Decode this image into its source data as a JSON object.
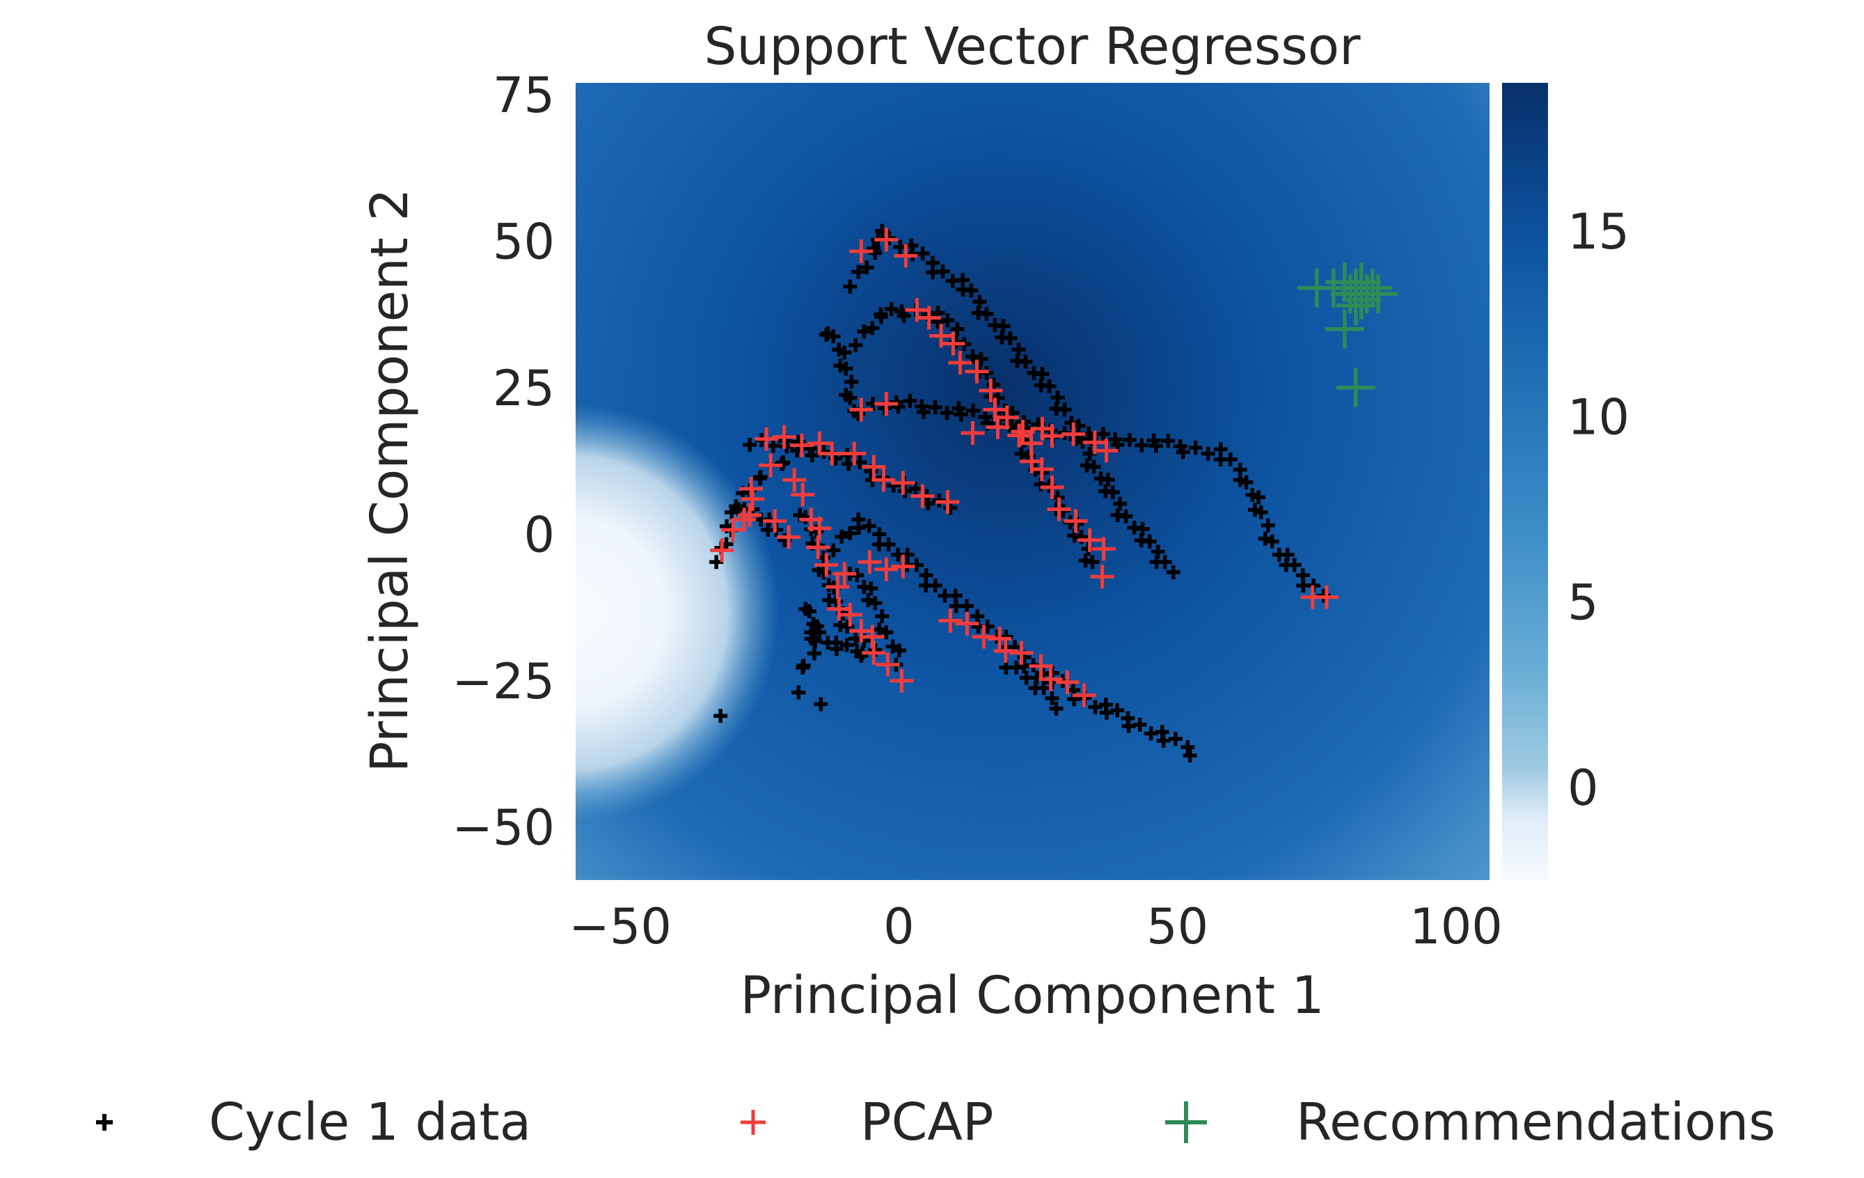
{
  "chart_data": {
    "type": "scatter",
    "title": "Support Vector Regressor",
    "xlabel": "Principal Component 1",
    "ylabel": "Principal Component 2",
    "xlim": [
      -58,
      106
    ],
    "ylim": [
      -59,
      77
    ],
    "xticks": [
      -50,
      0,
      50,
      100
    ],
    "yticks": [
      -50,
      -25,
      0,
      25,
      50,
      75
    ],
    "grid": false,
    "background": {
      "type": "heatmap",
      "colormap": "Blues",
      "colorbar": {
        "range": [
          -2.5,
          19
        ],
        "ticks": [
          0,
          5,
          10,
          15
        ]
      },
      "peaks": [
        {
          "x": 20,
          "y": 22,
          "value": 19
        },
        {
          "x": -58,
          "y": -9,
          "value": -2.5
        }
      ]
    },
    "colors": {
      "cycle1": "#000000",
      "pcap": "#f23c3c",
      "recommendations": "#2e8b57"
    },
    "legend": {
      "placement": "bottom",
      "entries": [
        "Cycle 1 data",
        "PCAP",
        "Recommendations"
      ]
    },
    "series": [
      {
        "name": "Cycle 1 data",
        "marker": "plus-small",
        "paths": [
          [
            [
              -3,
              51
            ],
            [
              3,
              48
            ],
            [
              12,
              42
            ],
            [
              18,
              35
            ],
            [
              24,
              28
            ],
            [
              30,
              21
            ],
            [
              33,
              15
            ],
            [
              36,
              10
            ],
            [
              40,
              4
            ],
            [
              45,
              -2
            ],
            [
              49,
              -6
            ]
          ],
          [
            [
              -8,
              43
            ],
            [
              -6,
              46
            ],
            [
              -4,
              49
            ],
            [
              -3,
              51
            ]
          ],
          [
            [
              -12,
              35
            ],
            [
              -9,
              26
            ],
            [
              -8,
              20
            ]
          ],
          [
            [
              -7,
              33
            ],
            [
              -4,
              37
            ],
            [
              0,
              38
            ],
            [
              5,
              38
            ],
            [
              10,
              35
            ],
            [
              15,
              28
            ],
            [
              18,
              23
            ],
            [
              22,
              16
            ],
            [
              25,
              10
            ],
            [
              29,
              5
            ],
            [
              32,
              0
            ],
            [
              35,
              -5
            ]
          ],
          [
            [
              -6,
              22
            ],
            [
              2,
              22
            ],
            [
              10,
              21
            ],
            [
              20,
              19
            ],
            [
              30,
              17
            ],
            [
              40,
              16
            ],
            [
              50,
              15
            ],
            [
              57,
              14
            ],
            [
              62,
              10
            ],
            [
              65,
              3
            ],
            [
              68,
              -3
            ],
            [
              72,
              -7
            ],
            [
              76,
              -10
            ]
          ],
          [
            [
              -26,
              16
            ],
            [
              -18,
              15
            ],
            [
              -10,
              13
            ],
            [
              -4,
              10
            ],
            [
              3,
              7
            ],
            [
              9,
              5
            ]
          ],
          [
            [
              -32,
              -4
            ],
            [
              -30,
              3
            ],
            [
              -27,
              8
            ],
            [
              -23,
              11
            ],
            [
              -20,
              13
            ],
            [
              -18,
              14
            ]
          ],
          [
            [
              -27,
              5
            ],
            [
              -24,
              2
            ],
            [
              -21,
              -1
            ]
          ],
          [
            [
              -17,
              4
            ],
            [
              -14,
              -4
            ],
            [
              -12,
              -11
            ],
            [
              -9,
              -16
            ],
            [
              -6,
              -20
            ]
          ],
          [
            [
              -11,
              -2
            ],
            [
              -8,
              2
            ],
            [
              -4,
              0
            ],
            [
              2,
              -5
            ],
            [
              8,
              -10
            ],
            [
              15,
              -15
            ],
            [
              22,
              -21
            ],
            [
              28,
              -25
            ],
            [
              35,
              -29
            ],
            [
              42,
              -32
            ],
            [
              48,
              -35
            ],
            [
              53,
              -37
            ]
          ],
          [
            [
              -16,
              -12
            ],
            [
              -15,
              -19
            ],
            [
              -17,
              -23
            ]
          ],
          [
            [
              -8,
              -6
            ],
            [
              -5,
              -11
            ],
            [
              -2,
              -17
            ],
            [
              0,
              -22
            ]
          ],
          [
            [
              -15,
              -16
            ],
            [
              -12,
              -19
            ],
            [
              -8,
              -20
            ],
            [
              -4,
              -20
            ]
          ],
          [
            [
              20,
              -22
            ],
            [
              24,
              -25
            ],
            [
              27,
              -28
            ],
            [
              29,
              -29
            ]
          ]
        ],
        "extra": [
          [
            -32,
            -31
          ],
          [
            -14,
            -29
          ],
          [
            -18,
            -27
          ],
          [
            -13,
            34
          ]
        ]
      },
      {
        "name": "PCAP",
        "marker": "plus-medium",
        "paths": [
          [
            [
              -6,
              49
            ],
            [
              -2,
              50
            ],
            [
              1,
              48
            ]
          ],
          [
            [
              4,
              39
            ],
            [
              9,
              32
            ],
            [
              14,
              27
            ],
            [
              18,
              22
            ],
            [
              23,
              15
            ],
            [
              27,
              8
            ],
            [
              32,
              2
            ],
            [
              36,
              -3
            ],
            [
              37,
              -7
            ]
          ],
          [
            [
              -6,
              22
            ],
            [
              -2,
              22
            ]
          ],
          [
            [
              14,
              18
            ],
            [
              22,
              18
            ],
            [
              28,
              17
            ],
            [
              38,
              15
            ]
          ],
          [
            [
              -23,
              17
            ],
            [
              -15,
              15
            ],
            [
              -8,
              13
            ],
            [
              -2,
              10
            ],
            [
              4,
              7
            ],
            [
              8,
              5
            ]
          ],
          [
            [
              -31,
              -2
            ],
            [
              -28,
              3
            ],
            [
              -26,
              8
            ],
            [
              -23,
              11
            ]
          ],
          [
            [
              -26,
              4
            ],
            [
              -22,
              2
            ],
            [
              -20,
              0
            ]
          ],
          [
            [
              -18,
              10
            ],
            [
              -16,
              3
            ],
            [
              -14,
              -2
            ],
            [
              -13,
              -6
            ],
            [
              -10,
              -12
            ],
            [
              -7,
              -16
            ],
            [
              -4,
              -20
            ],
            [
              -2,
              -23
            ],
            [
              0,
              -25
            ]
          ],
          [
            [
              -9,
              -6
            ],
            [
              -5,
              -5
            ],
            [
              0,
              -6
            ]
          ],
          [
            [
              10,
              -14
            ],
            [
              15,
              -17
            ],
            [
              22,
              -21
            ],
            [
              28,
              -24
            ],
            [
              33,
              -27
            ]
          ],
          [
            [
              75,
              -10
            ],
            [
              77,
              -11
            ]
          ]
        ]
      },
      {
        "name": "Recommendations",
        "marker": "plus-large",
        "points": [
          [
            75,
            42
          ],
          [
            78,
            42
          ],
          [
            80,
            43
          ],
          [
            81,
            41
          ],
          [
            82,
            42
          ],
          [
            83,
            40
          ],
          [
            83,
            43
          ],
          [
            84,
            41
          ],
          [
            85,
            42
          ],
          [
            86,
            41
          ],
          [
            82,
            39
          ],
          [
            80,
            35
          ],
          [
            82,
            25
          ]
        ]
      }
    ]
  }
}
